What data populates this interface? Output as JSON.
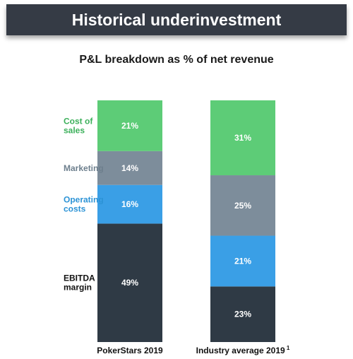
{
  "header": {
    "title": "Historical underinvestment",
    "subtitle": "P&L breakdown as % of net revenue"
  },
  "chart_data": {
    "type": "bar",
    "stacked": true,
    "orientation": "vertical",
    "title": "P&L breakdown as % of net revenue",
    "categories": [
      "PokerStars 2019",
      "Industry average 2019"
    ],
    "category_footnotes": [
      "",
      "1"
    ],
    "series": [
      {
        "name": "EBITDA margin",
        "legend_lines": [
          "EBITDA",
          "margin"
        ],
        "color": "#2f3a45",
        "values": [
          49,
          23
        ],
        "labels": [
          "49%",
          "23%"
        ]
      },
      {
        "name": "Operating costs",
        "legend_lines": [
          "Operating",
          "costs"
        ],
        "color": "#3a9fe6",
        "values": [
          16,
          21
        ],
        "labels": [
          "16%",
          "21%"
        ]
      },
      {
        "name": "Marketing",
        "legend_lines": [
          "Marketing"
        ],
        "color": "#7d8d9b",
        "values": [
          14,
          25
        ],
        "labels": [
          "14%",
          "25%"
        ]
      },
      {
        "name": "Cost of sales",
        "legend_lines": [
          "Cost of",
          "sales"
        ],
        "color": "#5dcc77",
        "values": [
          21,
          31
        ],
        "labels": [
          "21%",
          "31%"
        ]
      }
    ],
    "legend_position": "left",
    "legend_text_colors": {
      "Cost of sales": "#3bb05a",
      "Marketing": "#6d7f8d",
      "Operating costs": "#2c93d6",
      "EBITDA margin": "#111111"
    },
    "ylim": [
      0,
      100
    ],
    "grid": false
  }
}
